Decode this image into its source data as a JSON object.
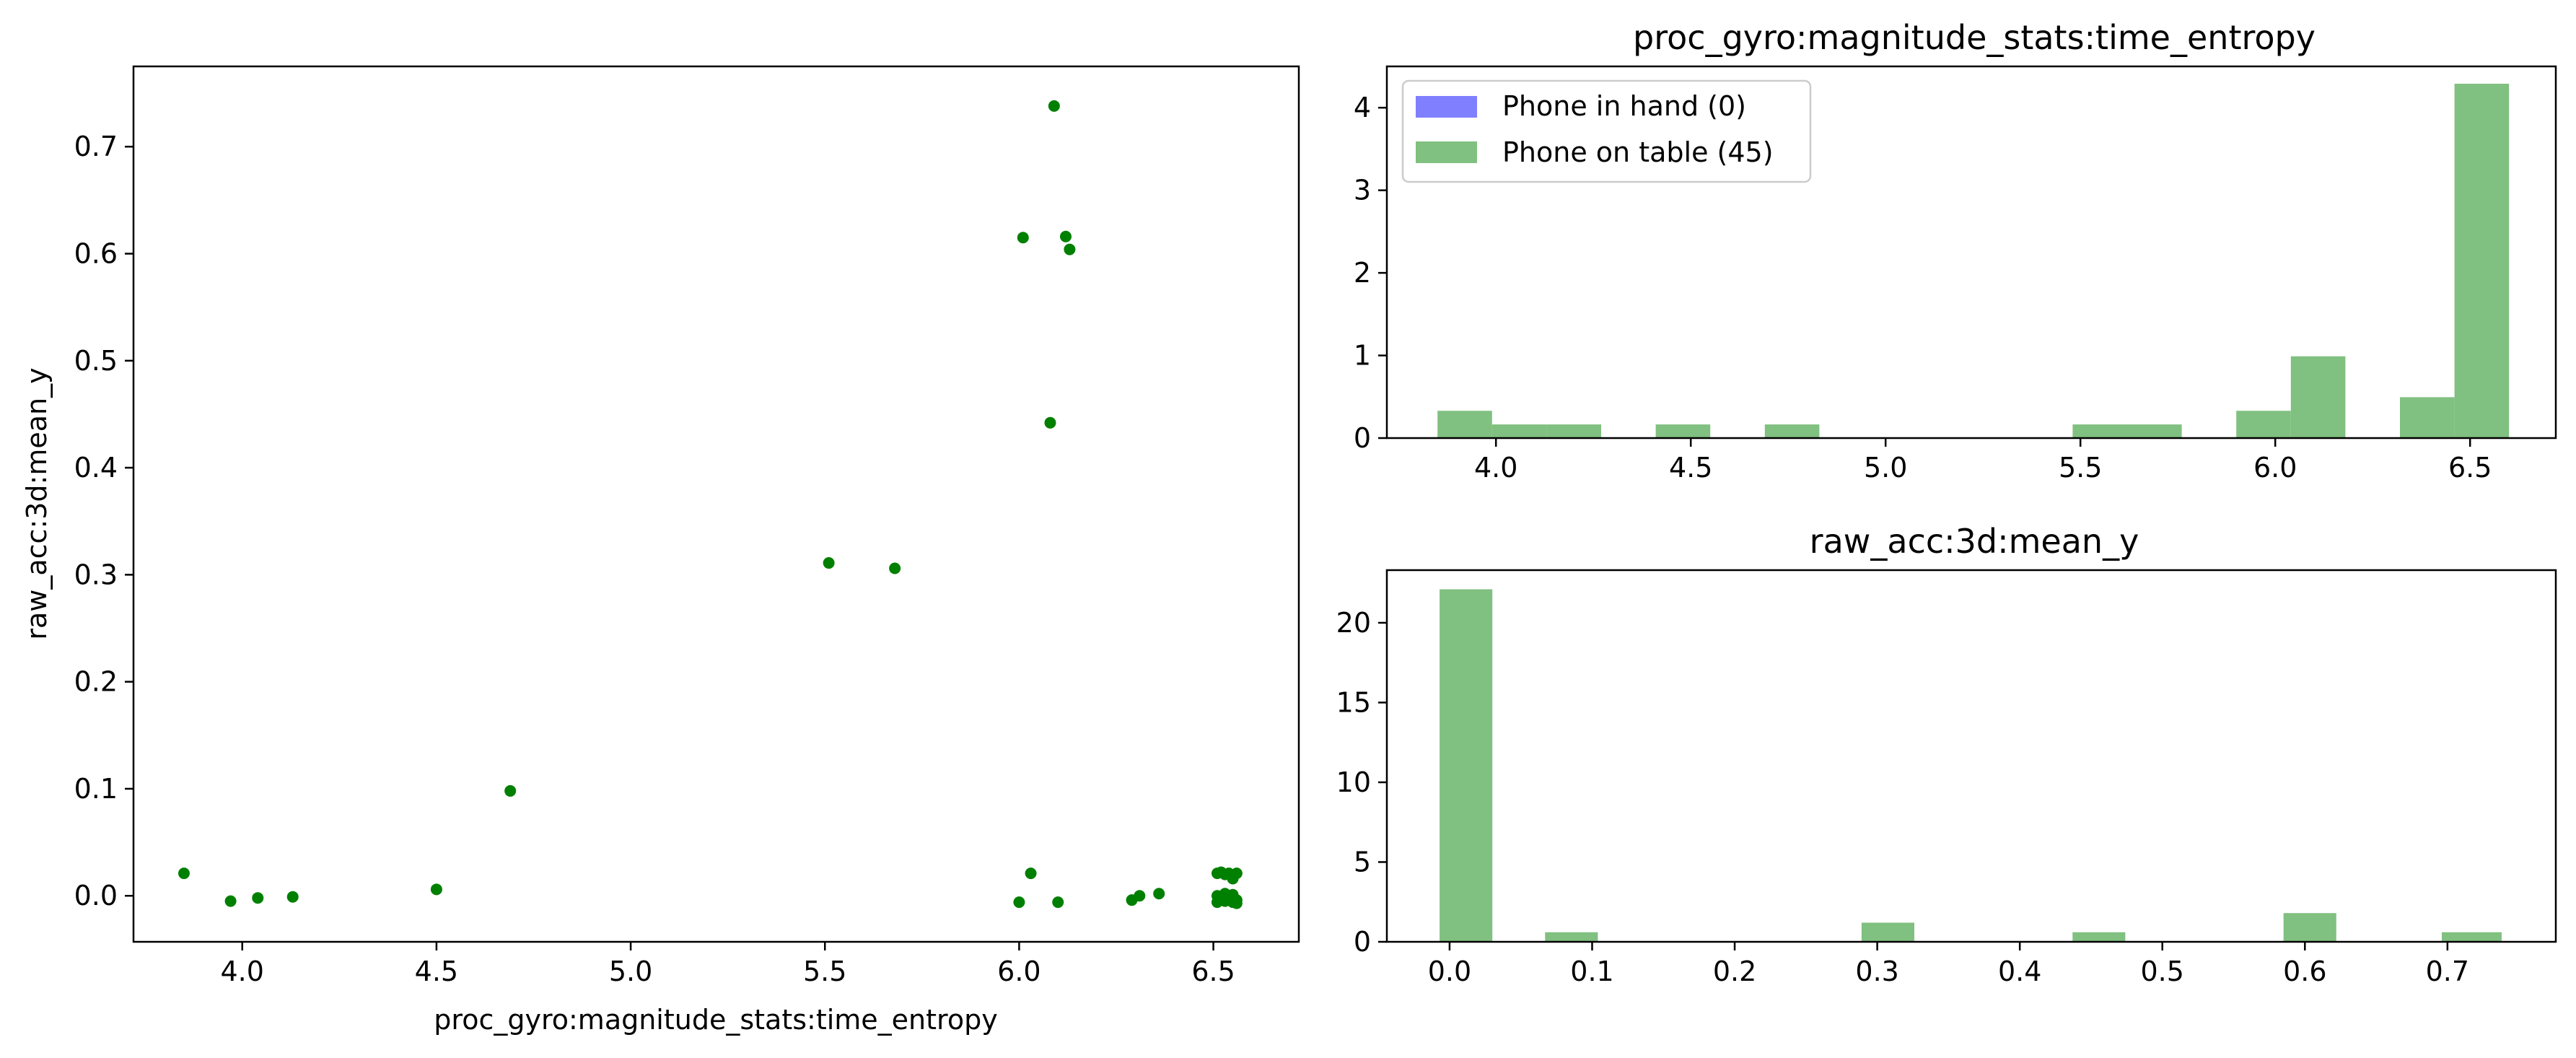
{
  "chart_data": [
    {
      "type": "scatter",
      "title": "",
      "xlabel": "proc_gyro:magnitude_stats:time_entropy",
      "ylabel": "raw_acc:3d:mean_y",
      "xlim": [
        3.72,
        6.72
      ],
      "ylim": [
        -0.043,
        0.775
      ],
      "xticks": [
        4.0,
        4.5,
        5.0,
        5.5,
        6.0,
        6.5
      ],
      "xtick_labels": [
        "4.0",
        "4.5",
        "5.0",
        "5.5",
        "6.0",
        "6.5"
      ],
      "yticks": [
        0.0,
        0.1,
        0.2,
        0.3,
        0.4,
        0.5,
        0.6,
        0.7
      ],
      "ytick_labels": [
        "0.0",
        "0.1",
        "0.2",
        "0.3",
        "0.4",
        "0.5",
        "0.6",
        "0.7"
      ],
      "grid": false,
      "color": "#008000",
      "points": [
        [
          3.85,
          0.021
        ],
        [
          3.97,
          -0.005
        ],
        [
          4.04,
          -0.002
        ],
        [
          4.13,
          -0.001
        ],
        [
          4.5,
          0.006
        ],
        [
          4.69,
          0.098
        ],
        [
          5.51,
          0.311
        ],
        [
          5.68,
          0.306
        ],
        [
          6.0,
          -0.006
        ],
        [
          6.01,
          0.615
        ],
        [
          6.03,
          0.021
        ],
        [
          6.08,
          0.442
        ],
        [
          6.09,
          0.738
        ],
        [
          6.1,
          -0.006
        ],
        [
          6.12,
          0.616
        ],
        [
          6.13,
          0.604
        ],
        [
          6.29,
          -0.004
        ],
        [
          6.31,
          0.0
        ],
        [
          6.36,
          0.002
        ],
        [
          6.51,
          0.021
        ],
        [
          6.52,
          0.022
        ],
        [
          6.53,
          0.02
        ],
        [
          6.54,
          0.021
        ],
        [
          6.55,
          0.019
        ],
        [
          6.56,
          0.021
        ],
        [
          6.55,
          0.016
        ],
        [
          6.51,
          0.0
        ],
        [
          6.52,
          -0.003
        ],
        [
          6.53,
          0.002
        ],
        [
          6.54,
          -0.002
        ],
        [
          6.55,
          0.001
        ],
        [
          6.56,
          -0.004
        ],
        [
          6.51,
          -0.006
        ],
        [
          6.53,
          -0.005
        ],
        [
          6.55,
          -0.006
        ],
        [
          6.56,
          -0.007
        ]
      ]
    },
    {
      "type": "bar",
      "title": "proc_gyro:magnitude_stats:time_entropy",
      "xlabel": "",
      "ylabel": "",
      "xlim": [
        3.72,
        6.72
      ],
      "ylim": [
        0,
        4.5
      ],
      "xticks": [
        4.0,
        4.5,
        5.0,
        5.5,
        6.0,
        6.5
      ],
      "xtick_labels": [
        "4.0",
        "4.5",
        "5.0",
        "5.5",
        "6.0",
        "6.5"
      ],
      "yticks": [
        0,
        1,
        2,
        3,
        4
      ],
      "ytick_labels": [
        "0",
        "1",
        "2",
        "3",
        "4"
      ],
      "legend_placement": "top-left",
      "series": [
        {
          "name": "Phone in hand (0)",
          "color": "#8080ff",
          "bins": []
        },
        {
          "name": "Phone on table (45)",
          "color": "#80c080",
          "bins": [
            [
              3.85,
              3.99,
              0.33
            ],
            [
              3.99,
              4.13,
              0.165
            ],
            [
              4.13,
              4.27,
              0.165
            ],
            [
              4.41,
              4.55,
              0.165
            ],
            [
              4.69,
              4.83,
              0.165
            ],
            [
              5.48,
              5.62,
              0.165
            ],
            [
              5.62,
              5.76,
              0.165
            ],
            [
              5.9,
              6.04,
              0.33
            ],
            [
              6.04,
              6.18,
              0.99
            ],
            [
              6.32,
              6.46,
              0.495
            ],
            [
              6.46,
              6.6,
              4.29
            ]
          ]
        }
      ]
    },
    {
      "type": "bar",
      "title": "raw_acc:3d:mean_y",
      "xlabel": "",
      "ylabel": "",
      "xlim": [
        -0.044,
        0.776
      ],
      "ylim": [
        0,
        23.3
      ],
      "xticks": [
        0.0,
        0.1,
        0.2,
        0.3,
        0.4,
        0.5,
        0.6,
        0.7
      ],
      "xtick_labels": [
        "0.0",
        "0.1",
        "0.2",
        "0.3",
        "0.4",
        "0.5",
        "0.6",
        "0.7"
      ],
      "yticks": [
        0,
        5,
        10,
        15,
        20
      ],
      "ytick_labels": [
        "0",
        "5",
        "10",
        "15",
        "20"
      ],
      "series": [
        {
          "name": "Phone on table (45)",
          "color": "#80c080",
          "bins": [
            [
              -0.007,
              0.03,
              22.1
            ],
            [
              0.067,
              0.104,
              0.6
            ],
            [
              0.289,
              0.326,
              1.2
            ],
            [
              0.437,
              0.474,
              0.6
            ],
            [
              0.585,
              0.622,
              1.8
            ],
            [
              0.696,
              0.738,
              0.6
            ]
          ]
        }
      ]
    }
  ]
}
